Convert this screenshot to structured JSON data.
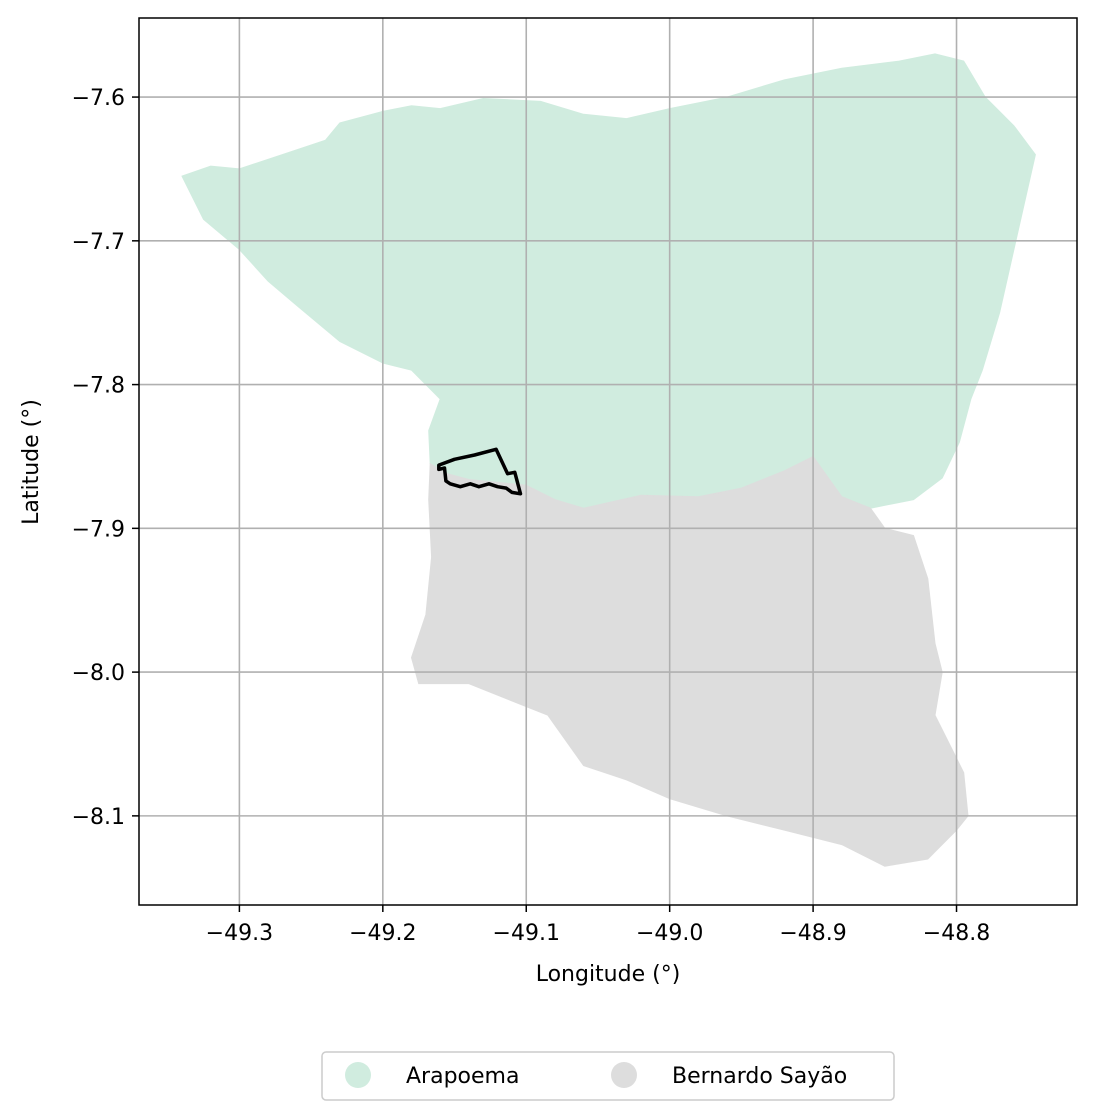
{
  "map": {
    "xlabel": "Longitude (°)",
    "ylabel": "Latitude (°)",
    "xlim": [
      -49.37,
      -48.716
    ],
    "ylim": [
      -8.162,
      -7.545
    ],
    "grid": true,
    "xticks": [
      {
        "value": -49.3,
        "label": "−49.3"
      },
      {
        "value": -49.2,
        "label": "−49.2"
      },
      {
        "value": -49.1,
        "label": "−49.1"
      },
      {
        "value": -49.0,
        "label": "−49.0"
      },
      {
        "value": -48.9,
        "label": "−48.9"
      },
      {
        "value": -48.8,
        "label": "−48.8"
      }
    ],
    "yticks": [
      {
        "value": -7.6,
        "label": "−7.6"
      },
      {
        "value": -7.7,
        "label": "−7.7"
      },
      {
        "value": -7.8,
        "label": "−7.8"
      },
      {
        "value": -7.9,
        "label": "−7.9"
      },
      {
        "value": -8.0,
        "label": "−8.0"
      },
      {
        "value": -8.1,
        "label": "−8.1"
      }
    ],
    "regions": [
      {
        "name": "Arapoema",
        "color": "#d0ecdf",
        "coords": [
          [
            -49.34,
            -7.655
          ],
          [
            -49.32,
            -7.648
          ],
          [
            -49.3,
            -7.65
          ],
          [
            -49.27,
            -7.64
          ],
          [
            -49.24,
            -7.63
          ],
          [
            -49.23,
            -7.618
          ],
          [
            -49.2,
            -7.61
          ],
          [
            -49.18,
            -7.606
          ],
          [
            -49.16,
            -7.608
          ],
          [
            -49.13,
            -7.601
          ],
          [
            -49.09,
            -7.603
          ],
          [
            -49.06,
            -7.612
          ],
          [
            -49.03,
            -7.615
          ],
          [
            -49.0,
            -7.608
          ],
          [
            -48.96,
            -7.6
          ],
          [
            -48.92,
            -7.588
          ],
          [
            -48.88,
            -7.58
          ],
          [
            -48.84,
            -7.575
          ],
          [
            -48.815,
            -7.57
          ],
          [
            -48.795,
            -7.575
          ],
          [
            -48.78,
            -7.6
          ],
          [
            -48.76,
            -7.62
          ],
          [
            -48.745,
            -7.64
          ],
          [
            -48.77,
            -7.75
          ],
          [
            -48.782,
            -7.79
          ],
          [
            -48.79,
            -7.81
          ],
          [
            -48.798,
            -7.84
          ],
          [
            -48.81,
            -7.865
          ],
          [
            -48.83,
            -7.88
          ],
          [
            -48.86,
            -7.886
          ],
          [
            -48.88,
            -7.878
          ],
          [
            -48.9,
            -7.85
          ],
          [
            -48.92,
            -7.86
          ],
          [
            -48.95,
            -7.872
          ],
          [
            -48.98,
            -7.878
          ],
          [
            -49.02,
            -7.877
          ],
          [
            -49.06,
            -7.886
          ],
          [
            -49.08,
            -7.88
          ],
          [
            -49.1,
            -7.87
          ],
          [
            -49.14,
            -7.866
          ],
          [
            -49.155,
            -7.862
          ],
          [
            -49.167,
            -7.855
          ],
          [
            -49.168,
            -7.832
          ],
          [
            -49.16,
            -7.81
          ],
          [
            -49.18,
            -7.79
          ],
          [
            -49.2,
            -7.785
          ],
          [
            -49.23,
            -7.77
          ],
          [
            -49.26,
            -7.745
          ],
          [
            -49.28,
            -7.728
          ],
          [
            -49.3,
            -7.706
          ],
          [
            -49.325,
            -7.685
          ]
        ]
      },
      {
        "name": "Bernardo Sayão",
        "color": "#dddddd",
        "coords": [
          [
            -49.167,
            -7.855
          ],
          [
            -49.155,
            -7.862
          ],
          [
            -49.14,
            -7.866
          ],
          [
            -49.1,
            -7.87
          ],
          [
            -49.08,
            -7.88
          ],
          [
            -49.06,
            -7.886
          ],
          [
            -49.02,
            -7.877
          ],
          [
            -48.98,
            -7.878
          ],
          [
            -48.95,
            -7.872
          ],
          [
            -48.92,
            -7.86
          ],
          [
            -48.9,
            -7.85
          ],
          [
            -48.88,
            -7.878
          ],
          [
            -48.86,
            -7.886
          ],
          [
            -48.85,
            -7.9
          ],
          [
            -48.83,
            -7.905
          ],
          [
            -48.82,
            -7.935
          ],
          [
            -48.815,
            -7.98
          ],
          [
            -48.81,
            -8.0
          ],
          [
            -48.815,
            -8.03
          ],
          [
            -48.805,
            -8.05
          ],
          [
            -48.795,
            -8.07
          ],
          [
            -48.792,
            -8.1
          ],
          [
            -48.8,
            -8.11
          ],
          [
            -48.82,
            -8.13
          ],
          [
            -48.85,
            -8.135
          ],
          [
            -48.88,
            -8.12
          ],
          [
            -48.92,
            -8.11
          ],
          [
            -48.96,
            -8.1
          ],
          [
            -49.0,
            -8.088
          ],
          [
            -49.03,
            -8.075
          ],
          [
            -49.06,
            -8.065
          ],
          [
            -49.085,
            -8.03
          ],
          [
            -49.11,
            -8.02
          ],
          [
            -49.14,
            -8.008
          ],
          [
            -49.175,
            -8.008
          ],
          [
            -49.18,
            -7.99
          ],
          [
            -49.17,
            -7.96
          ],
          [
            -49.166,
            -7.92
          ],
          [
            -49.168,
            -7.88
          ]
        ]
      }
    ],
    "outline": {
      "color": "#000000",
      "coords": [
        [
          -49.161,
          -7.856
        ],
        [
          -49.15,
          -7.852
        ],
        [
          -49.136,
          -7.849
        ],
        [
          -49.121,
          -7.845
        ],
        [
          -49.113,
          -7.862
        ],
        [
          -49.108,
          -7.861
        ],
        [
          -49.104,
          -7.876
        ],
        [
          -49.11,
          -7.875
        ],
        [
          -49.114,
          -7.872
        ],
        [
          -49.12,
          -7.871
        ],
        [
          -49.126,
          -7.869
        ],
        [
          -49.133,
          -7.871
        ],
        [
          -49.139,
          -7.869
        ],
        [
          -49.146,
          -7.871
        ],
        [
          -49.153,
          -7.869
        ],
        [
          -49.156,
          -7.867
        ],
        [
          -49.157,
          -7.858
        ],
        [
          -49.161,
          -7.859
        ]
      ]
    }
  },
  "legend": {
    "placement": "bottom-center",
    "items": [
      {
        "label": "Arapoema",
        "color": "#d0ecdf"
      },
      {
        "label": "Bernardo Sayão",
        "color": "#dddddd"
      }
    ]
  }
}
